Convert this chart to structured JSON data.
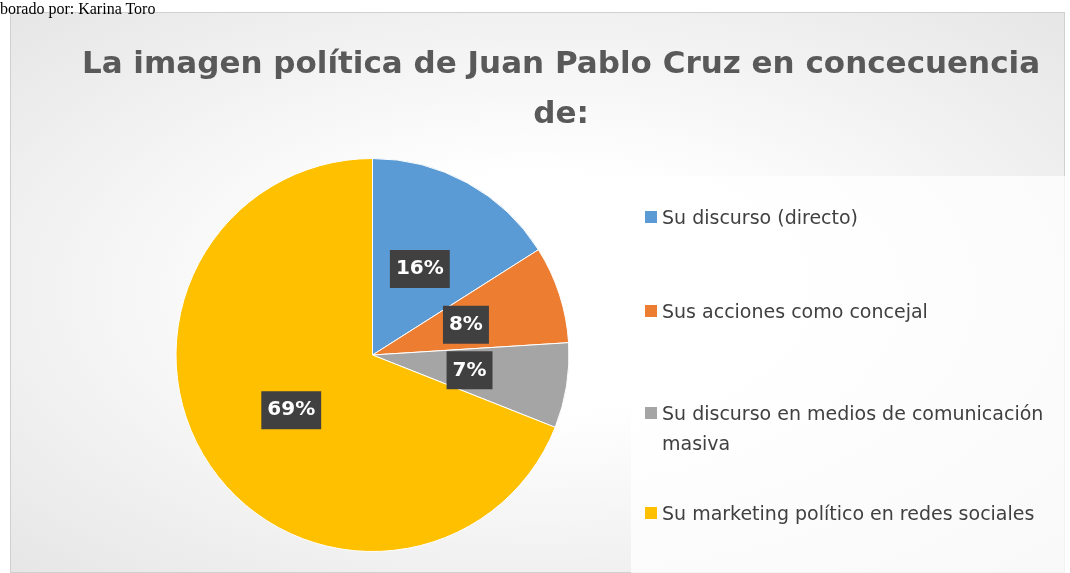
{
  "chart_data": {
    "type": "pie",
    "title": "La imagen política de Juan Pablo Cruz en concecuencia de:",
    "categories": [
      "Su discurso (directo)",
      "Sus acciones como concejal",
      "Su discurso en medios de comunicación masiva",
      "Su marketing político en redes sociales"
    ],
    "values": [
      16,
      8,
      7,
      69
    ],
    "colors": [
      "#5b9bd5",
      "#ed7d31",
      "#a5a5a5",
      "#ffc000"
    ],
    "value_labels": [
      "16%",
      "8%",
      "7%",
      "69%"
    ],
    "legend": "right",
    "annotations": [
      "borado por: Karina Toro"
    ]
  }
}
